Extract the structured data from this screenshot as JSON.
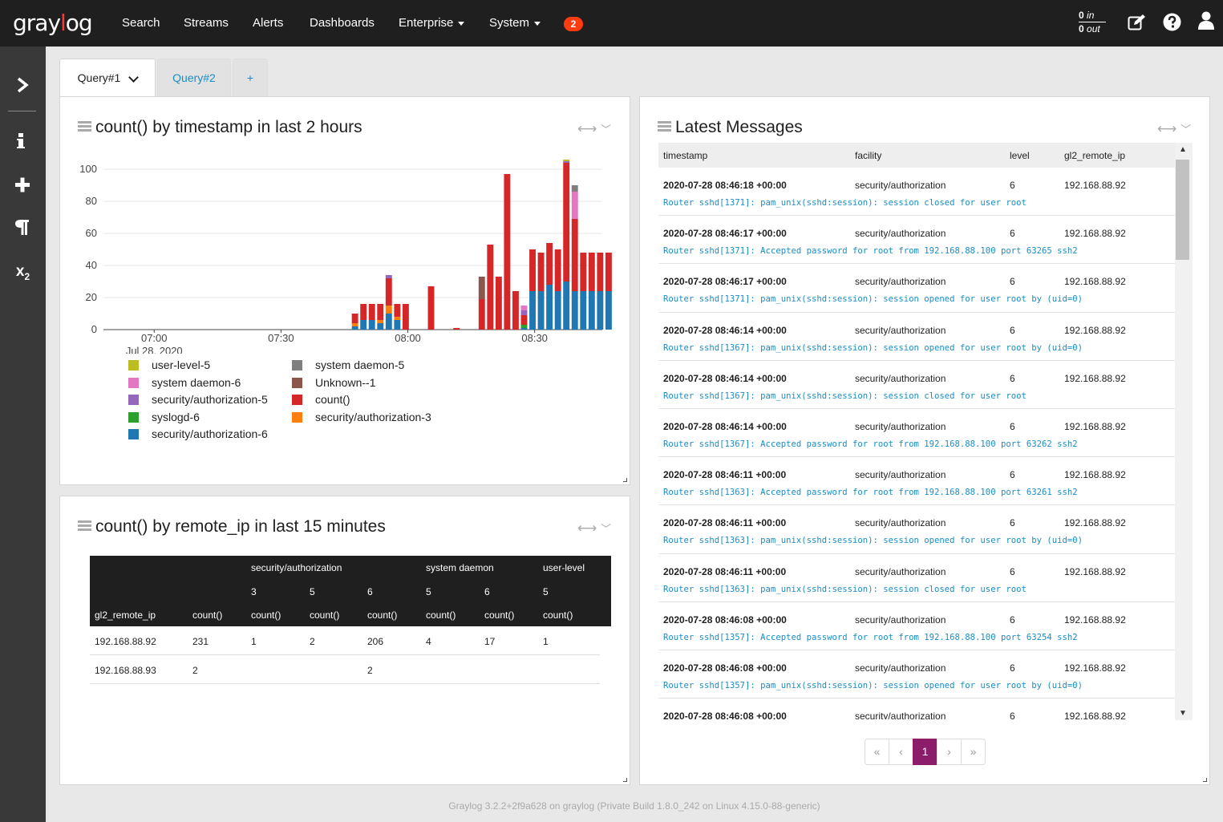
{
  "app": {
    "logo_text_left": "gray",
    "logo_text_o": "l",
    "logo_text_right": "og"
  },
  "nav": {
    "search": "Search",
    "streams": "Streams",
    "alerts": "Alerts",
    "dashboards": "Dashboards",
    "enterprise": "Enterprise",
    "system": "System",
    "notification_count": "2"
  },
  "throughput": {
    "in_value": "0",
    "in_label": "in",
    "out_value": "0",
    "out_label": "out"
  },
  "icons": {
    "sidebar": [
      "chevron-right-icon",
      "info-icon",
      "plus-icon",
      "paragraph-icon",
      "subscript-icon"
    ],
    "top": [
      "edit-icon",
      "help-icon",
      "user-icon"
    ]
  },
  "tabs": {
    "query1": "Query#1",
    "query2": "Query#2",
    "add": "+"
  },
  "widget_chart": {
    "title": "count() by timestamp in last 2 hours"
  },
  "widget_table": {
    "title": "count() by remote_ip in last 15 minutes"
  },
  "widget_messages": {
    "title": "Latest Messages"
  },
  "chart_data": {
    "type": "bar",
    "stacked": true,
    "title": "count() by timestamp in last 2 hours",
    "x_tick_labels": [
      "07:00",
      "07:30",
      "08:00",
      "08:30"
    ],
    "x_sublabel": "Jul 28, 2020",
    "x_tick_minutes": [
      0,
      30,
      60,
      90
    ],
    "x_range_minutes": [
      -12,
      106
    ],
    "bar_width_minutes": 1.5,
    "y_ticks": [
      0,
      20,
      40,
      60,
      80,
      100
    ],
    "ylim": [
      0,
      100
    ],
    "grid": true,
    "legend_placement": "bottom",
    "series": [
      {
        "name": "user-level-5",
        "color": "#bcbd22"
      },
      {
        "name": "system daemon-6",
        "color": "#e377c2"
      },
      {
        "name": "security/authorization-5",
        "color": "#9467bd"
      },
      {
        "name": "syslogd-6",
        "color": "#2ca02c"
      },
      {
        "name": "security/authorization-6",
        "color": "#1f77b4"
      },
      {
        "name": "system daemon-5",
        "color": "#7f7f7f"
      },
      {
        "name": "Unknown--1",
        "color": "#8c564b"
      },
      {
        "name": "count()",
        "color": "#d62728"
      },
      {
        "name": "security/authorization-3",
        "color": "#ff7f0e"
      }
    ],
    "bars": [
      {
        "x": 47.5,
        "stack": {
          "security/authorization-6": 2,
          "security/authorization-3": 2,
          "count()": 6
        }
      },
      {
        "x": 49.5,
        "stack": {
          "security/authorization-6": 6,
          "count()": 10
        }
      },
      {
        "x": 51.5,
        "stack": {
          "security/authorization-6": 6,
          "count()": 10
        }
      },
      {
        "x": 53.5,
        "stack": {
          "security/authorization-6": 4,
          "security/authorization-3": 2,
          "count()": 10
        }
      },
      {
        "x": 55.5,
        "stack": {
          "security/authorization-6": 10,
          "security/authorization-3": 5,
          "count()": 17,
          "security/authorization-5": 2
        }
      },
      {
        "x": 57.5,
        "stack": {
          "security/authorization-6": 6,
          "security/authorization-3": 2,
          "count()": 8
        }
      },
      {
        "x": 59.5,
        "stack": {
          "count()": 16
        }
      },
      {
        "x": 61.5,
        "stack": {}
      },
      {
        "x": 63.5,
        "stack": {}
      },
      {
        "x": 65.5,
        "stack": {
          "count()": 27
        }
      },
      {
        "x": 71.5,
        "stack": {
          "count()": 1
        }
      },
      {
        "x": 77.5,
        "stack": {
          "count()": 19,
          "Unknown--1": 14
        }
      },
      {
        "x": 79.5,
        "stack": {
          "count()": 53
        }
      },
      {
        "x": 81.5,
        "stack": {
          "count()": 33
        }
      },
      {
        "x": 83.5,
        "stack": {
          "count()": 97
        }
      },
      {
        "x": 85.5,
        "stack": {
          "count()": 24
        }
      },
      {
        "x": 87.5,
        "stack": {
          "security/authorization-6": 1,
          "syslogd-6": 2,
          "count()": 6,
          "security/authorization-5": 3,
          "system daemon-6": 3
        }
      },
      {
        "x": 89.5,
        "stack": {
          "security/authorization-6": 24,
          "count()": 26
        }
      },
      {
        "x": 91.5,
        "stack": {
          "security/authorization-6": 24,
          "count()": 24
        }
      },
      {
        "x": 93.5,
        "stack": {
          "security/authorization-6": 28,
          "count()": 26
        }
      },
      {
        "x": 95.5,
        "stack": {
          "security/authorization-6": 24,
          "count()": 26
        }
      },
      {
        "x": 97.5,
        "stack": {
          "security/authorization-6": 30,
          "count()": 74,
          "security/authorization-5": 1,
          "user-level-5": 1
        }
      },
      {
        "x": 99.5,
        "stack": {
          "security/authorization-6": 24,
          "count()": 45,
          "system daemon-6": 17,
          "system daemon-5": 4
        }
      },
      {
        "x": 101.5,
        "stack": {
          "security/authorization-6": 24,
          "count()": 24
        }
      },
      {
        "x": 103.5,
        "stack": {
          "security/authorization-6": 24,
          "count()": 24
        }
      },
      {
        "x": 105.5,
        "stack": {
          "security/authorization-6": 24,
          "count()": 24
        }
      },
      {
        "x": 107.5,
        "stack": {
          "security/authorization-6": 24,
          "count()": 24
        }
      },
      {
        "x": 109.5,
        "stack": {
          "security/authorization-6": 12,
          "count()": 12
        }
      }
    ]
  },
  "pivot": {
    "header_groups": [
      {
        "label": "security/authorization",
        "values": [
          "3",
          "5",
          "6"
        ]
      },
      {
        "label": "system daemon",
        "values": [
          "5",
          "6"
        ]
      },
      {
        "label": "user-level",
        "values": [
          "5"
        ]
      }
    ],
    "row_field": "gl2_remote_ip",
    "col_label": "count()",
    "rows": [
      {
        "ip": "192.168.88.92",
        "total": "231",
        "cells": [
          "1",
          "2",
          "206",
          "4",
          "17",
          "1"
        ]
      },
      {
        "ip": "192.168.88.93",
        "total": "2",
        "cells": [
          "",
          "",
          "2",
          "",
          "",
          ""
        ]
      }
    ]
  },
  "messages": {
    "columns": [
      "timestamp",
      "facility",
      "level",
      "gl2_remote_ip"
    ],
    "rows": [
      {
        "ts": "2020-07-28 08:46:18 +00:00",
        "facility": "security/authorization",
        "level": "6",
        "ip": "192.168.88.92",
        "text": "Router sshd[1371]: pam_unix(sshd:session): session closed for user root"
      },
      {
        "ts": "2020-07-28 08:46:17 +00:00",
        "facility": "security/authorization",
        "level": "6",
        "ip": "192.168.88.92",
        "text": "Router sshd[1371]: Accepted password for root from 192.168.88.100 port 63265 ssh2"
      },
      {
        "ts": "2020-07-28 08:46:17 +00:00",
        "facility": "security/authorization",
        "level": "6",
        "ip": "192.168.88.92",
        "text": "Router sshd[1371]: pam_unix(sshd:session): session opened for user root by (uid=0)"
      },
      {
        "ts": "2020-07-28 08:46:14 +00:00",
        "facility": "security/authorization",
        "level": "6",
        "ip": "192.168.88.92",
        "text": "Router sshd[1367]: pam_unix(sshd:session): session opened for user root by (uid=0)"
      },
      {
        "ts": "2020-07-28 08:46:14 +00:00",
        "facility": "security/authorization",
        "level": "6",
        "ip": "192.168.88.92",
        "text": "Router sshd[1367]: pam_unix(sshd:session): session closed for user root"
      },
      {
        "ts": "2020-07-28 08:46:14 +00:00",
        "facility": "security/authorization",
        "level": "6",
        "ip": "192.168.88.92",
        "text": "Router sshd[1367]: Accepted password for root from 192.168.88.100 port 63262 ssh2"
      },
      {
        "ts": "2020-07-28 08:46:11 +00:00",
        "facility": "security/authorization",
        "level": "6",
        "ip": "192.168.88.92",
        "text": "Router sshd[1363]: Accepted password for root from 192.168.88.100 port 63261 ssh2"
      },
      {
        "ts": "2020-07-28 08:46:11 +00:00",
        "facility": "security/authorization",
        "level": "6",
        "ip": "192.168.88.92",
        "text": "Router sshd[1363]: pam_unix(sshd:session): session opened for user root by (uid=0)"
      },
      {
        "ts": "2020-07-28 08:46:11 +00:00",
        "facility": "security/authorization",
        "level": "6",
        "ip": "192.168.88.92",
        "text": "Router sshd[1363]: pam_unix(sshd:session): session closed for user root"
      },
      {
        "ts": "2020-07-28 08:46:08 +00:00",
        "facility": "security/authorization",
        "level": "6",
        "ip": "192.168.88.92",
        "text": "Router sshd[1357]: Accepted password for root from 192.168.88.100 port 63254 ssh2"
      },
      {
        "ts": "2020-07-28 08:46:08 +00:00",
        "facility": "security/authorization",
        "level": "6",
        "ip": "192.168.88.92",
        "text": "Router sshd[1357]: pam_unix(sshd:session): session opened for user root by (uid=0)"
      },
      {
        "ts": "2020-07-28 08:46:08 +00:00",
        "facility": "security/authorization",
        "level": "6",
        "ip": "192.168.88.92",
        "text": ""
      }
    ]
  },
  "pagination": {
    "first": "«",
    "prev": "‹",
    "current": "1",
    "next": "›",
    "last": "»"
  },
  "footer": "Graylog 3.2.2+2f9a628 on graylog (Private Build 1.8.0_242 on Linux 4.15.0-88-generic)"
}
